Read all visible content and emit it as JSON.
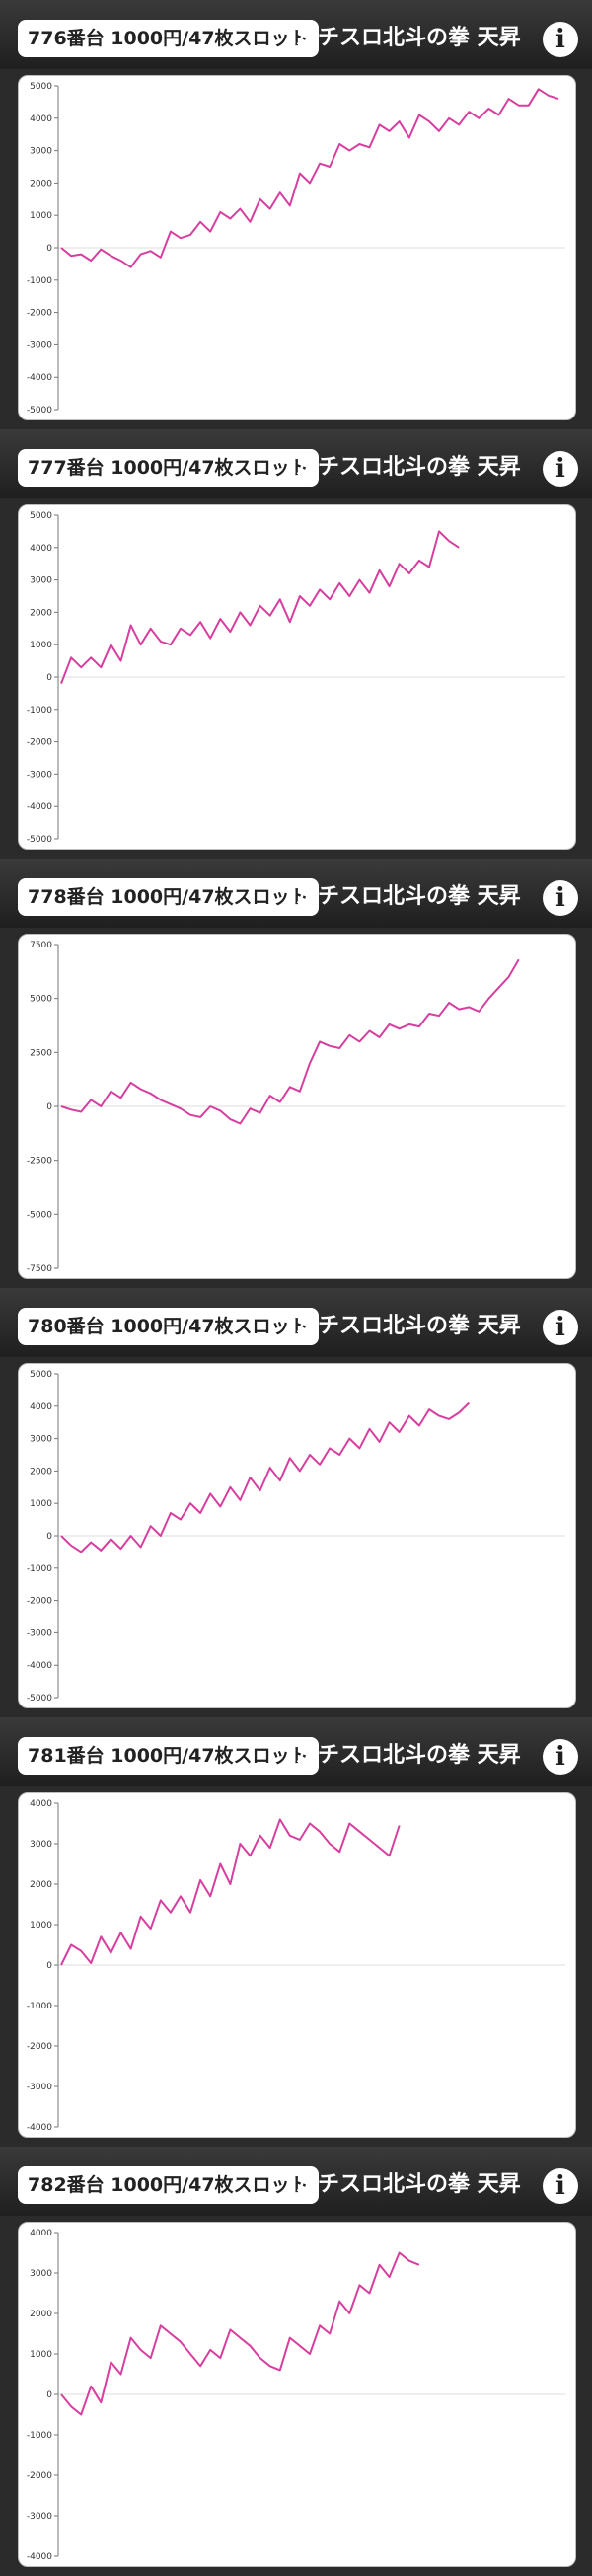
{
  "colors": {
    "line": "#d63fa0",
    "axis": "#777777",
    "zero_line": "#dddddd",
    "header_dark": "#1f1f1f"
  },
  "icons": {
    "info": "info-circle-icon"
  },
  "info_glyph": "i",
  "panels": [
    {
      "machine_label": "776番台 1000円/47枚スロット",
      "machine_name": "パチスロ北斗の拳 天昇",
      "chart_data": {
        "type": "line",
        "ylim": [
          -5000,
          5000
        ],
        "yticks": [
          5000,
          4000,
          3000,
          2000,
          1000,
          0,
          -1000,
          -2000,
          -3000,
          -4000,
          -5000
        ],
        "grid": false,
        "x": [
          0,
          2,
          4,
          6,
          8,
          10,
          12,
          14,
          16,
          18,
          20,
          22,
          24,
          26,
          28,
          30,
          32,
          34,
          36,
          38,
          40,
          42,
          44,
          46,
          48,
          50,
          52,
          54,
          56,
          58,
          60,
          62,
          64,
          66,
          68,
          70,
          72,
          74,
          76,
          78,
          80,
          82,
          84,
          86,
          88,
          90,
          92,
          94,
          96,
          98,
          100
        ],
        "values": [
          0,
          -250,
          -200,
          -400,
          -50,
          -250,
          -400,
          -600,
          -200,
          -100,
          -300,
          500,
          300,
          400,
          800,
          500,
          1100,
          900,
          1200,
          800,
          1500,
          1200,
          1700,
          1300,
          2300,
          2000,
          2600,
          2500,
          3200,
          3000,
          3200,
          3100,
          3800,
          3600,
          3900,
          3400,
          4100,
          3900,
          3600,
          4000,
          3800,
          4200,
          4000,
          4300,
          4100,
          4600,
          4400,
          4400,
          4900,
          4700,
          4600
        ]
      }
    },
    {
      "machine_label": "777番台 1000円/47枚スロット",
      "machine_name": "パチスロ北斗の拳 天昇",
      "chart_data": {
        "type": "line",
        "ylim": [
          -5000,
          5000
        ],
        "yticks": [
          5000,
          4000,
          3000,
          2000,
          1000,
          0,
          -1000,
          -2000,
          -3000,
          -4000,
          -5000
        ],
        "grid": false,
        "x": [
          0,
          2,
          4,
          6,
          8,
          10,
          12,
          14,
          16,
          18,
          20,
          22,
          24,
          26,
          28,
          30,
          32,
          34,
          36,
          38,
          40,
          42,
          44,
          46,
          48,
          50,
          52,
          54,
          56,
          58,
          60,
          62,
          64,
          66,
          68,
          70,
          72,
          74,
          76,
          78,
          80,
          82,
          84,
          86,
          88,
          90,
          92,
          94,
          96,
          98,
          100
        ],
        "values": [
          -200,
          600,
          300,
          600,
          300,
          1000,
          500,
          1600,
          1000,
          1500,
          1100,
          1000,
          1500,
          1300,
          1700,
          1200,
          1800,
          1400,
          2000,
          1600,
          2200,
          1900,
          2400,
          1700,
          2500,
          2200,
          2700,
          2400,
          2900,
          2500,
          3000,
          2600,
          3300,
          2800,
          3500,
          3200,
          3600,
          3400,
          4500,
          4200,
          4000,
          null,
          null,
          null,
          null,
          null,
          null,
          null,
          null,
          null,
          null
        ]
      }
    },
    {
      "machine_label": "778番台 1000円/47枚スロット",
      "machine_name": "パチスロ北斗の拳 天昇",
      "chart_data": {
        "type": "line",
        "ylim": [
          -7500,
          7500
        ],
        "yticks": [
          7500,
          5000,
          2500,
          0,
          -2500,
          -5000,
          -7500
        ],
        "grid": false,
        "x": [
          0,
          2,
          4,
          6,
          8,
          10,
          12,
          14,
          16,
          18,
          20,
          22,
          24,
          26,
          28,
          30,
          32,
          34,
          36,
          38,
          40,
          42,
          44,
          46,
          48,
          50,
          52,
          54,
          56,
          58,
          60,
          62,
          64,
          66,
          68,
          70,
          72,
          74,
          76,
          78,
          80,
          82,
          84,
          86,
          88,
          90,
          92,
          94,
          96,
          98,
          100
        ],
        "values": [
          0,
          -150,
          -250,
          300,
          0,
          700,
          400,
          1100,
          800,
          600,
          300,
          100,
          -100,
          -400,
          -500,
          0,
          -200,
          -600,
          -800,
          -100,
          -300,
          500,
          200,
          900,
          700,
          2000,
          3000,
          2800,
          2700,
          3300,
          3000,
          3500,
          3200,
          3800,
          3600,
          3800,
          3700,
          4300,
          4200,
          4800,
          4500,
          4600,
          4400,
          5000,
          5500,
          6000,
          6800,
          null,
          null,
          null,
          null
        ]
      }
    },
    {
      "machine_label": "780番台 1000円/47枚スロット",
      "machine_name": "パチスロ北斗の拳 天昇",
      "chart_data": {
        "type": "line",
        "ylim": [
          -5000,
          5000
        ],
        "yticks": [
          5000,
          4000,
          3000,
          2000,
          1000,
          0,
          -1000,
          -2000,
          -3000,
          -4000,
          -5000
        ],
        "grid": false,
        "x": [
          0,
          2,
          4,
          6,
          8,
          10,
          12,
          14,
          16,
          18,
          20,
          22,
          24,
          26,
          28,
          30,
          32,
          34,
          36,
          38,
          40,
          42,
          44,
          46,
          48,
          50,
          52,
          54,
          56,
          58,
          60,
          62,
          64,
          66,
          68,
          70,
          72,
          74,
          76,
          78,
          80,
          82,
          84,
          86,
          88,
          90,
          92,
          94,
          96,
          98,
          100
        ],
        "values": [
          0,
          -300,
          -500,
          -200,
          -450,
          -100,
          -400,
          0,
          -350,
          300,
          0,
          700,
          500,
          1000,
          700,
          1300,
          900,
          1500,
          1100,
          1800,
          1400,
          2100,
          1700,
          2400,
          2000,
          2500,
          2200,
          2700,
          2500,
          3000,
          2700,
          3300,
          2900,
          3500,
          3200,
          3700,
          3400,
          3900,
          3700,
          3600,
          3800,
          4100,
          null,
          null,
          null,
          null,
          null,
          null,
          null,
          null,
          null
        ]
      }
    },
    {
      "machine_label": "781番台 1000円/47枚スロット",
      "machine_name": "パチスロ北斗の拳 天昇",
      "chart_data": {
        "type": "line",
        "ylim": [
          -4000,
          4000
        ],
        "yticks": [
          4000,
          3000,
          2000,
          1000,
          0,
          -1000,
          -2000,
          -3000,
          -4000
        ],
        "grid": false,
        "x": [
          0,
          2,
          4,
          6,
          8,
          10,
          12,
          14,
          16,
          18,
          20,
          22,
          24,
          26,
          28,
          30,
          32,
          34,
          36,
          38,
          40,
          42,
          44,
          46,
          48,
          50,
          52,
          54,
          56,
          58,
          60,
          62,
          64,
          66,
          68,
          70,
          72,
          74,
          76,
          78,
          80,
          82,
          84,
          86,
          88,
          90,
          92,
          94,
          96,
          98,
          100
        ],
        "values": [
          0,
          500,
          350,
          50,
          700,
          300,
          800,
          400,
          1200,
          900,
          1600,
          1300,
          1700,
          1300,
          2100,
          1700,
          2500,
          2000,
          3000,
          2700,
          3200,
          2900,
          3600,
          3200,
          3100,
          3500,
          3300,
          3000,
          2800,
          3500,
          3300,
          3100,
          2900,
          2700,
          3450,
          null,
          null,
          null,
          null,
          null,
          null,
          null,
          null,
          null,
          null,
          null,
          null,
          null,
          null,
          null,
          null
        ]
      }
    },
    {
      "machine_label": "782番台 1000円/47枚スロット",
      "machine_name": "パチスロ北斗の拳 天昇",
      "chart_data": {
        "type": "line",
        "ylim": [
          -4000,
          4000
        ],
        "yticks": [
          4000,
          3000,
          2000,
          1000,
          0,
          -1000,
          -2000,
          -3000,
          -4000
        ],
        "grid": false,
        "x": [
          0,
          2,
          4,
          6,
          8,
          10,
          12,
          14,
          16,
          18,
          20,
          22,
          24,
          26,
          28,
          30,
          32,
          34,
          36,
          38,
          40,
          42,
          44,
          46,
          48,
          50,
          52,
          54,
          56,
          58,
          60,
          62,
          64,
          66,
          68,
          70,
          72,
          74,
          76,
          78,
          80,
          82,
          84,
          86,
          88,
          90,
          92,
          94,
          96,
          98,
          100
        ],
        "values": [
          0,
          -300,
          -500,
          200,
          -200,
          800,
          500,
          1400,
          1100,
          900,
          1700,
          1500,
          1300,
          1000,
          700,
          1100,
          900,
          1600,
          1400,
          1200,
          900,
          700,
          600,
          1400,
          1200,
          1000,
          1700,
          1500,
          2300,
          2000,
          2700,
          2500,
          3200,
          2900,
          3500,
          3300,
          3200,
          null,
          null,
          null,
          null,
          null,
          null,
          null,
          null,
          null,
          null,
          null,
          null,
          null,
          null
        ]
      }
    }
  ]
}
